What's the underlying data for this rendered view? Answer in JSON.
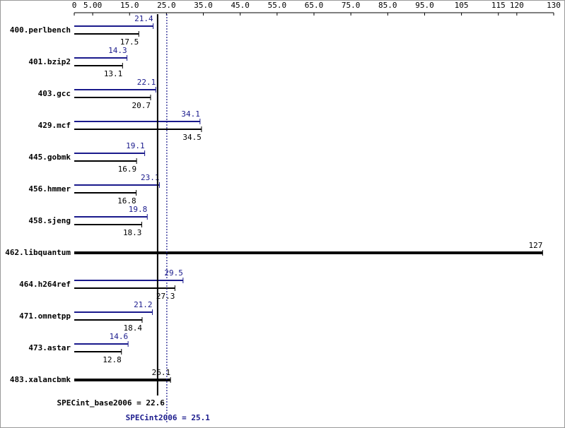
{
  "chart_data": {
    "type": "hbar",
    "categories": [
      "400.perlbench",
      "401.bzip2",
      "403.gcc",
      "429.mcf",
      "445.gobmk",
      "456.hmmer",
      "458.sjeng",
      "462.libquantum",
      "464.h264ref",
      "471.omnetpp",
      "473.astar",
      "483.xalancbmk"
    ],
    "series": [
      {
        "color": "#1a1a8c",
        "values": [
          21.4,
          14.3,
          22.1,
          34.1,
          19.1,
          23.1,
          19.8,
          null,
          29.5,
          21.2,
          14.6,
          null
        ]
      },
      {
        "color": "#000000",
        "values": [
          17.5,
          13.1,
          20.7,
          34.5,
          16.9,
          16.8,
          18.3,
          127,
          27.3,
          18.4,
          12.8,
          26.1
        ]
      }
    ],
    "xlim": [
      0,
      130
    ],
    "xticks": [
      0,
      {
        "value": 5,
        "label": "5.00"
      },
      {
        "value": 15,
        "label": "15.0"
      },
      {
        "value": 25,
        "label": "25.0"
      },
      {
        "value": 35,
        "label": "35.0"
      },
      {
        "value": 45,
        "label": "45.0"
      },
      {
        "value": 55,
        "label": "55.0"
      },
      {
        "value": 65,
        "label": "65.0"
      },
      {
        "value": 75,
        "label": "75.0"
      },
      {
        "value": 85,
        "label": "85.0"
      },
      {
        "value": 95,
        "label": "95.0"
      },
      105,
      115,
      120,
      130
    ],
    "reference_lines": [
      {
        "label": "SPECint_base2006 = 22.6",
        "value": 22.6,
        "color": "#000000",
        "style": "solid"
      },
      {
        "label": "SPECint2006 = 25.1",
        "value": 25.1,
        "color": "#1a1a8c",
        "style": "dotted"
      }
    ]
  }
}
